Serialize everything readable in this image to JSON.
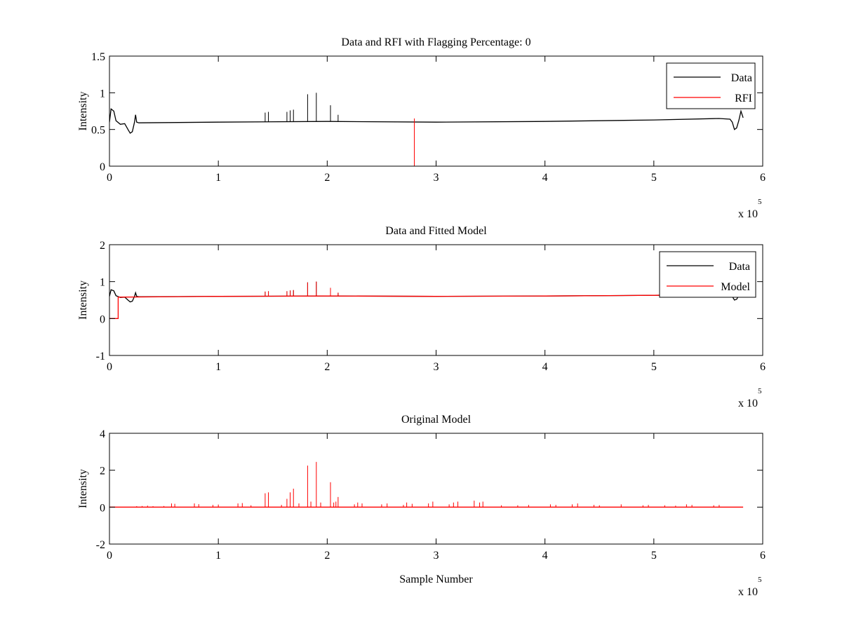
{
  "figure": {
    "background": "#ffffff"
  },
  "chart_data": [
    {
      "type": "line",
      "title": "Data and RFI with Flagging Percentage: 0",
      "xlabel": "",
      "ylabel": "Intensity",
      "xlim": [
        0,
        600000
      ],
      "ylim": [
        0,
        1.5
      ],
      "x_ticks": [
        0,
        100000,
        200000,
        300000,
        400000,
        500000,
        600000
      ],
      "x_tick_labels": [
        "0",
        "1",
        "2",
        "3",
        "4",
        "5",
        "6"
      ],
      "y_ticks": [
        0,
        0.5,
        1,
        1.5
      ],
      "y_tick_labels": [
        "0",
        "0.5",
        "1",
        "1.5"
      ],
      "x_exponent": {
        "base": "x 10",
        "power": "5"
      },
      "grid": false,
      "legend_position": "top-right",
      "series": [
        {
          "name": "Data",
          "color": "#000000",
          "points": [
            [
              0,
              0.6
            ],
            [
              1500,
              0.78
            ],
            [
              4000,
              0.75
            ],
            [
              6000,
              0.62
            ],
            [
              10000,
              0.57
            ],
            [
              14000,
              0.58
            ],
            [
              17000,
              0.5
            ],
            [
              19000,
              0.45
            ],
            [
              21000,
              0.47
            ],
            [
              23000,
              0.6
            ],
            [
              24000,
              0.7
            ],
            [
              25000,
              0.6
            ],
            [
              27000,
              0.59
            ],
            [
              100000,
              0.6
            ],
            [
              200000,
              0.61
            ],
            [
              300000,
              0.6
            ],
            [
              400000,
              0.61
            ],
            [
              500000,
              0.63
            ],
            [
              560000,
              0.65
            ],
            [
              570000,
              0.64
            ],
            [
              572000,
              0.6
            ],
            [
              574000,
              0.5
            ],
            [
              576000,
              0.52
            ],
            [
              578000,
              0.62
            ],
            [
              580000,
              0.75
            ],
            [
              582000,
              0.66
            ]
          ],
          "spikes": [
            [
              143000,
              0.73
            ],
            [
              146000,
              0.74
            ],
            [
              163000,
              0.74
            ],
            [
              166000,
              0.76
            ],
            [
              169000,
              0.77
            ],
            [
              182000,
              0.98
            ],
            [
              190000,
              1.0
            ],
            [
              203000,
              0.83
            ],
            [
              210000,
              0.7
            ]
          ]
        },
        {
          "name": "RFI",
          "color": "#ff0000",
          "points": [],
          "spikes": [
            [
              280000,
              0.65
            ]
          ]
        }
      ]
    },
    {
      "type": "line",
      "title": "Data and Fitted Model",
      "xlabel": "",
      "ylabel": "Intensity",
      "xlim": [
        0,
        600000
      ],
      "ylim": [
        -1,
        2
      ],
      "x_ticks": [
        0,
        100000,
        200000,
        300000,
        400000,
        500000,
        600000
      ],
      "x_tick_labels": [
        "0",
        "1",
        "2",
        "3",
        "4",
        "5",
        "6"
      ],
      "y_ticks": [
        -1,
        0,
        1,
        2
      ],
      "y_tick_labels": [
        "-1",
        "0",
        "1",
        "2"
      ],
      "x_exponent": {
        "base": "x 10",
        "power": "5"
      },
      "grid": false,
      "legend_position": "top-right",
      "series": [
        {
          "name": "Data",
          "color": "#000000",
          "points": [
            [
              0,
              0.6
            ],
            [
              1500,
              0.78
            ],
            [
              4000,
              0.75
            ],
            [
              6000,
              0.62
            ],
            [
              10000,
              0.57
            ],
            [
              14000,
              0.58
            ],
            [
              17000,
              0.5
            ],
            [
              19000,
              0.45
            ],
            [
              21000,
              0.47
            ],
            [
              23000,
              0.6
            ],
            [
              24000,
              0.7
            ],
            [
              25000,
              0.6
            ],
            [
              27000,
              0.59
            ],
            [
              100000,
              0.6
            ],
            [
              200000,
              0.61
            ],
            [
              300000,
              0.6
            ],
            [
              400000,
              0.61
            ],
            [
              500000,
              0.63
            ],
            [
              560000,
              0.65
            ],
            [
              570000,
              0.64
            ],
            [
              572000,
              0.6
            ],
            [
              574000,
              0.5
            ],
            [
              576000,
              0.52
            ],
            [
              578000,
              0.62
            ],
            [
              580000,
              0.75
            ],
            [
              582000,
              0.66
            ]
          ],
          "spikes": [
            [
              143000,
              0.73
            ],
            [
              146000,
              0.74
            ],
            [
              163000,
              0.74
            ],
            [
              166000,
              0.76
            ],
            [
              169000,
              0.77
            ],
            [
              182000,
              0.98
            ],
            [
              190000,
              1.0
            ],
            [
              203000,
              0.83
            ],
            [
              210000,
              0.7
            ]
          ]
        },
        {
          "name": "Model",
          "color": "#ff0000",
          "points": [
            [
              0,
              0
            ],
            [
              8000,
              0
            ],
            [
              8000,
              0.58
            ],
            [
              100000,
              0.6
            ],
            [
              200000,
              0.61
            ],
            [
              300000,
              0.6
            ],
            [
              400000,
              0.61
            ],
            [
              500000,
              0.63
            ],
            [
              582000,
              0.65
            ]
          ],
          "spikes": [
            [
              143000,
              0.73
            ],
            [
              146000,
              0.74
            ],
            [
              163000,
              0.74
            ],
            [
              166000,
              0.76
            ],
            [
              169000,
              0.77
            ],
            [
              182000,
              0.98
            ],
            [
              190000,
              1.0
            ],
            [
              203000,
              0.83
            ],
            [
              210000,
              0.7
            ]
          ]
        }
      ]
    },
    {
      "type": "line",
      "title": "Original Model",
      "xlabel": "Sample Number",
      "ylabel": "Intensity",
      "xlim": [
        0,
        600000
      ],
      "ylim": [
        -2,
        4
      ],
      "x_ticks": [
        0,
        100000,
        200000,
        300000,
        400000,
        500000,
        600000
      ],
      "x_tick_labels": [
        "0",
        "1",
        "2",
        "3",
        "4",
        "5",
        "6"
      ],
      "y_ticks": [
        -2,
        0,
        2,
        4
      ],
      "y_tick_labels": [
        "-2",
        "0",
        "2",
        "4"
      ],
      "x_exponent": {
        "base": "x 10",
        "power": "5"
      },
      "grid": false,
      "legend_position": "none",
      "series": [
        {
          "color": "#ff0000",
          "points": [
            [
              0,
              0
            ],
            [
              582000,
              0
            ]
          ],
          "spikes": [
            [
              25000,
              0.05
            ],
            [
              30000,
              0.06
            ],
            [
              35000,
              0.08
            ],
            [
              40000,
              0.05
            ],
            [
              50000,
              0.06
            ],
            [
              57000,
              0.2
            ],
            [
              60000,
              0.18
            ],
            [
              78000,
              0.2
            ],
            [
              82000,
              0.16
            ],
            [
              95000,
              0.12
            ],
            [
              100000,
              0.14
            ],
            [
              118000,
              0.2
            ],
            [
              122000,
              0.22
            ],
            [
              130000,
              0.1
            ],
            [
              143000,
              0.75
            ],
            [
              146000,
              0.8
            ],
            [
              158000,
              0.12
            ],
            [
              163000,
              0.45
            ],
            [
              166000,
              0.8
            ],
            [
              169000,
              1.0
            ],
            [
              174000,
              0.2
            ],
            [
              182000,
              2.25
            ],
            [
              185000,
              0.3
            ],
            [
              190000,
              2.45
            ],
            [
              194000,
              0.25
            ],
            [
              203000,
              1.35
            ],
            [
              206000,
              0.25
            ],
            [
              208000,
              0.3
            ],
            [
              210000,
              0.55
            ],
            [
              225000,
              0.15
            ],
            [
              228000,
              0.25
            ],
            [
              232000,
              0.2
            ],
            [
              250000,
              0.15
            ],
            [
              255000,
              0.2
            ],
            [
              270000,
              0.12
            ],
            [
              273000,
              0.25
            ],
            [
              278000,
              0.18
            ],
            [
              293000,
              0.2
            ],
            [
              297000,
              0.3
            ],
            [
              312000,
              0.15
            ],
            [
              316000,
              0.25
            ],
            [
              320000,
              0.3
            ],
            [
              335000,
              0.35
            ],
            [
              340000,
              0.25
            ],
            [
              343000,
              0.3
            ],
            [
              360000,
              0.1
            ],
            [
              375000,
              0.1
            ],
            [
              385000,
              0.12
            ],
            [
              405000,
              0.15
            ],
            [
              410000,
              0.12
            ],
            [
              425000,
              0.15
            ],
            [
              430000,
              0.2
            ],
            [
              445000,
              0.12
            ],
            [
              450000,
              0.1
            ],
            [
              470000,
              0.15
            ],
            [
              490000,
              0.1
            ],
            [
              495000,
              0.12
            ],
            [
              510000,
              0.1
            ],
            [
              520000,
              0.08
            ],
            [
              530000,
              0.15
            ],
            [
              535000,
              0.12
            ],
            [
              555000,
              0.1
            ],
            [
              560000,
              0.12
            ]
          ]
        }
      ]
    }
  ]
}
